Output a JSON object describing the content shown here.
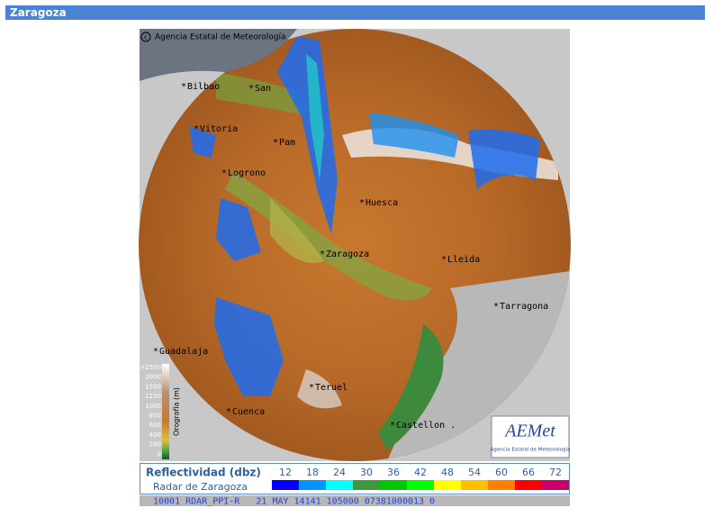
{
  "header": {
    "title": "Zaragoza"
  },
  "map": {
    "copyright": "Agencia Estatal de Meteorología",
    "cities": [
      "Bilbao",
      "San",
      "Vitoria",
      "Pam",
      "Logrono",
      "Huesca",
      "Zaragoza",
      "Lleida",
      "Tarragona",
      "Guadalaja",
      "Teruel",
      "Cuenca",
      "Castellon ."
    ],
    "orography": {
      "title": "Orografía (m)",
      "levels": [
        ">2500",
        "2000",
        "1500",
        "1250",
        "1000",
        "800",
        "600",
        "400",
        "200",
        "0"
      ]
    },
    "logo": {
      "name": "AEMet",
      "subtitle": "Agencia Estatal de Meteorología"
    }
  },
  "legend": {
    "title": "Reflectividad (dbz)",
    "subtitle": "Radar de Zaragoza",
    "scale": [
      {
        "value": 12,
        "color": "#0000ff"
      },
      {
        "value": 18,
        "color": "#0094ff"
      },
      {
        "value": 24,
        "color": "#00ffff"
      },
      {
        "value": 30,
        "color": "#3c9a3c"
      },
      {
        "value": 36,
        "color": "#00c800"
      },
      {
        "value": 42,
        "color": "#00ff00"
      },
      {
        "value": 48,
        "color": "#ffff00"
      },
      {
        "value": 54,
        "color": "#ffc000"
      },
      {
        "value": 60,
        "color": "#ff8000"
      },
      {
        "value": 66,
        "color": "#ff0000"
      },
      {
        "value": 72,
        "color": "#c8006a"
      }
    ]
  },
  "status": "10001 RDAR_PPI-R   21 MAY 14141 105000 07381000013 0"
}
